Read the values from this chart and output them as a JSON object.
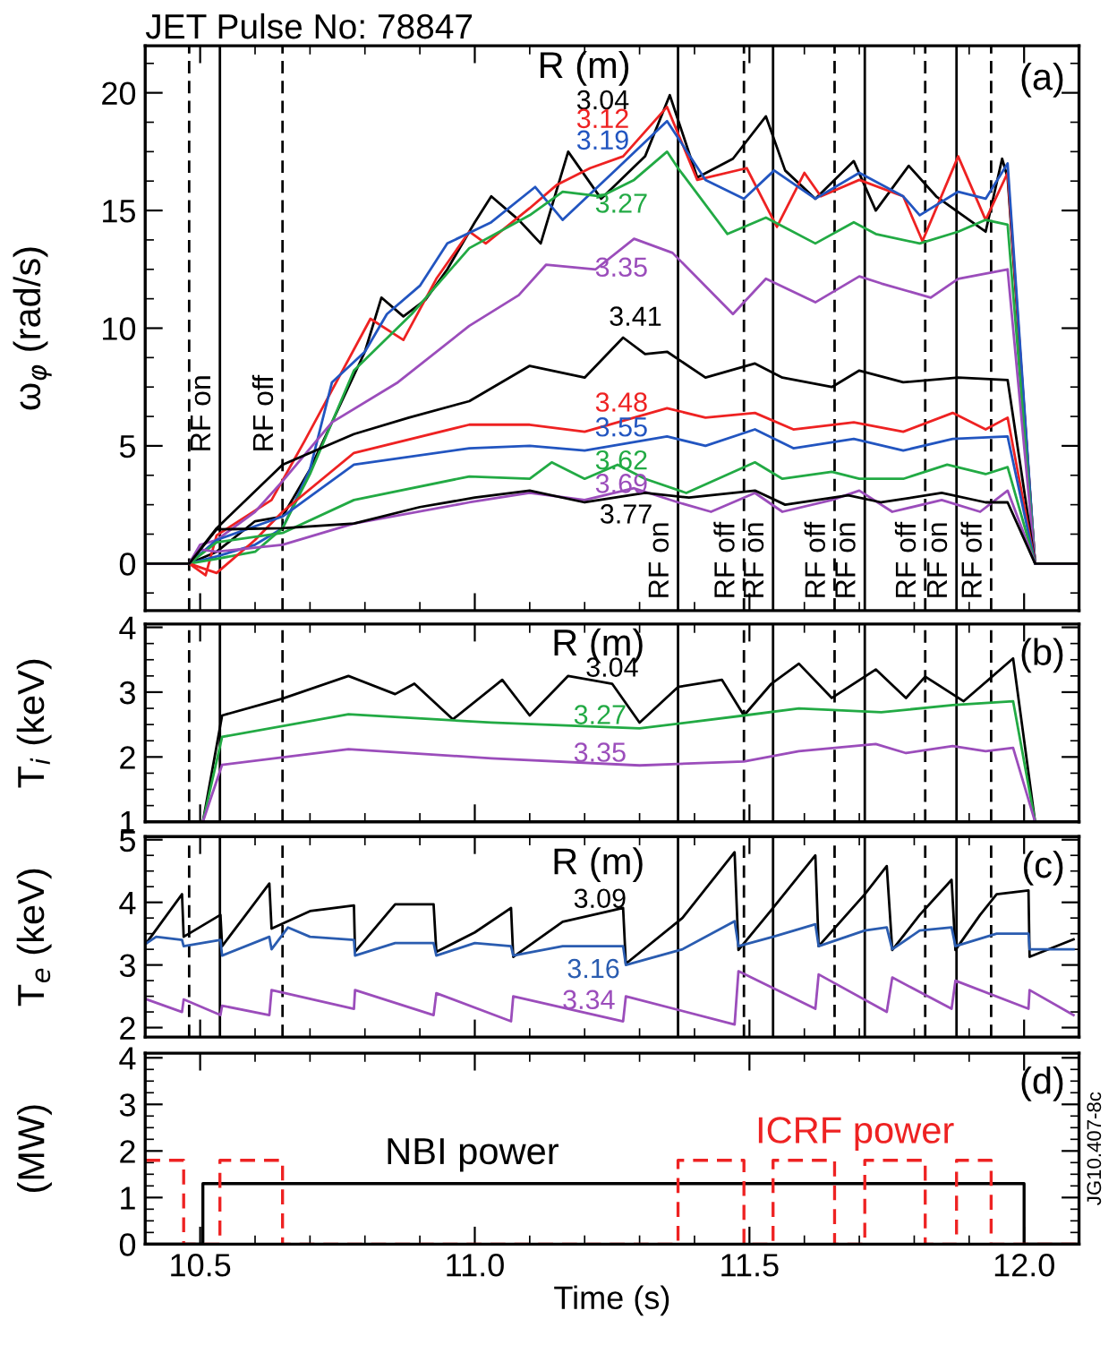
{
  "chart_data": [
    {
      "type": "line",
      "title": "JET Pulse No: 78847",
      "ylabel": "ω$_{φ}$ (rad/s)",
      "legend_title": "R (m)",
      "annotations": [
        "(a)"
      ],
      "tick_labels": "y",
      "xlim": [
        10.4,
        12.1
      ],
      "xticks": [
        {
          "value": 10.5,
          "label": null
        },
        {
          "value": 11.0,
          "label": null
        },
        {
          "value": 11.5,
          "label": null
        },
        {
          "value": 12.0,
          "label": null
        }
      ],
      "ylim": [
        -2,
        22
      ],
      "yticks": [
        0,
        5,
        10,
        15,
        20
      ],
      "ref_lines": [
        {
          "axis": "x",
          "value": 10.48,
          "line_style": "dashed",
          "color": "#000000"
        },
        {
          "axis": "x",
          "value": 10.536,
          "label": "RF on",
          "line_style": "solid",
          "color": "#000000"
        },
        {
          "axis": "x",
          "value": 10.65,
          "label": "RF off",
          "line_style": "dashed",
          "color": "#000000"
        },
        {
          "axis": "x",
          "value": 11.37,
          "label": "RF on",
          "line_style": "solid",
          "color": "#000000"
        },
        {
          "axis": "x",
          "value": 11.49,
          "label": "RF off",
          "line_style": "dashed",
          "color": "#000000"
        },
        {
          "axis": "x",
          "value": 11.543,
          "label": "RF on",
          "line_style": "solid",
          "color": "#000000"
        },
        {
          "axis": "x",
          "value": 11.655,
          "label": "RF off",
          "line_style": "dashed",
          "color": "#000000"
        },
        {
          "axis": "x",
          "value": 11.71,
          "label": "RF on",
          "line_style": "solid",
          "color": "#000000"
        },
        {
          "axis": "x",
          "value": 11.82,
          "label": "RF off",
          "line_style": "dashed",
          "color": "#000000"
        },
        {
          "axis": "x",
          "value": 11.877,
          "label": "RF on",
          "line_style": "solid",
          "color": "#000000"
        },
        {
          "axis": "x",
          "value": 11.94,
          "label": "RF off",
          "line_style": "dashed",
          "color": "#000000"
        }
      ],
      "series": [
        {
          "name": "3.04",
          "color": "#000000",
          "x": [
            10.4,
            10.48,
            10.53,
            10.6,
            10.65,
            10.7,
            10.75,
            10.8,
            10.83,
            10.87,
            10.91,
            10.95,
            11.0,
            11.03,
            11.08,
            11.12,
            11.17,
            11.23,
            11.31,
            11.355,
            11.405,
            11.47,
            11.53,
            11.565,
            11.62,
            11.69,
            11.73,
            11.79,
            11.84,
            11.93,
            11.96,
            11.97,
            12.02,
            12.1
          ],
          "values": [
            0,
            0,
            0.5,
            1.8,
            2.0,
            4.0,
            6.5,
            9.0,
            11.3,
            10.5,
            11.2,
            12.5,
            14.5,
            15.6,
            14.6,
            13.6,
            17.5,
            15.5,
            17.3,
            19.9,
            16.4,
            17.2,
            19.0,
            16.7,
            15.5,
            17.1,
            15.0,
            16.9,
            15.6,
            14.1,
            17.2,
            16.4,
            0,
            0
          ]
        },
        {
          "name": "3.12",
          "color": "#ee2222",
          "x": [
            10.4,
            10.48,
            10.51,
            10.53,
            10.63,
            10.69,
            10.75,
            10.81,
            10.87,
            10.93,
            10.99,
            11.02,
            11.1,
            11.15,
            11.21,
            11.27,
            11.35,
            11.405,
            11.495,
            11.55,
            11.6,
            11.63,
            11.7,
            11.78,
            11.815,
            11.88,
            11.93,
            11.97,
            12.02,
            12.1
          ],
          "values": [
            0,
            0,
            -0.5,
            1.2,
            2.7,
            5.2,
            7.8,
            10.4,
            9.5,
            12.1,
            14.1,
            13.6,
            15.1,
            16.1,
            16.8,
            17.3,
            19.4,
            16.3,
            16.8,
            14.3,
            16.6,
            15.6,
            16.3,
            15.6,
            13.7,
            17.3,
            14.6,
            16.6,
            0,
            0
          ]
        },
        {
          "name": "3.19",
          "color": "#2255c0",
          "x": [
            10.4,
            10.48,
            10.53,
            10.6,
            10.65,
            10.7,
            10.74,
            10.8,
            10.84,
            10.9,
            10.95,
            11.03,
            11.11,
            11.16,
            11.26,
            11.35,
            11.42,
            11.49,
            11.545,
            11.62,
            11.7,
            11.78,
            11.81,
            11.88,
            11.93,
            11.97,
            12.02,
            12.1
          ],
          "values": [
            0,
            0,
            0.3,
            0.8,
            1.5,
            4.0,
            7.7,
            9.0,
            10.6,
            11.8,
            13.6,
            14.5,
            16.0,
            14.6,
            16.8,
            18.8,
            16.3,
            15.5,
            16.7,
            15.5,
            16.6,
            15.6,
            14.8,
            15.8,
            15.5,
            17.0,
            0,
            0
          ]
        },
        {
          "name": "3.27",
          "color": "#22aa44",
          "x": [
            10.4,
            10.48,
            10.53,
            10.6,
            10.65,
            10.7,
            10.78,
            10.885,
            10.99,
            11.1,
            11.16,
            11.23,
            11.29,
            11.35,
            11.37,
            11.46,
            11.53,
            11.62,
            11.69,
            11.73,
            11.81,
            11.88,
            11.93,
            11.97,
            12.02,
            12.1
          ],
          "values": [
            0,
            0,
            0.2,
            0.5,
            1.5,
            3.8,
            8.2,
            10.6,
            13.4,
            14.8,
            15.8,
            15.6,
            16.3,
            17.5,
            16.8,
            14.0,
            14.7,
            13.6,
            14.5,
            14.0,
            13.6,
            14.1,
            14.6,
            14.4,
            0,
            0
          ]
        },
        {
          "name": "3.35",
          "color": "#9b4dbb",
          "x": [
            10.4,
            10.48,
            10.5,
            10.53,
            10.6,
            10.65,
            10.74,
            10.86,
            10.99,
            11.08,
            11.13,
            11.22,
            11.29,
            11.36,
            11.47,
            11.53,
            11.62,
            11.7,
            11.74,
            11.83,
            11.88,
            11.97,
            12.02,
            12.1
          ],
          "values": [
            0,
            0,
            0.8,
            1.0,
            2.2,
            3.5,
            6.0,
            7.7,
            10.1,
            11.4,
            12.7,
            12.5,
            13.8,
            13.2,
            10.6,
            12.1,
            11.1,
            12.2,
            11.9,
            11.3,
            12.1,
            12.5,
            0,
            0
          ]
        },
        {
          "name": "3.41",
          "color": "#000000",
          "x": [
            10.4,
            10.48,
            10.53,
            10.65,
            10.78,
            10.88,
            10.99,
            11.1,
            11.2,
            11.27,
            11.31,
            11.35,
            11.42,
            11.51,
            11.56,
            11.65,
            11.7,
            11.78,
            11.88,
            11.97,
            12.02,
            12.1
          ],
          "values": [
            0,
            0,
            1.5,
            4.2,
            5.5,
            6.2,
            6.9,
            8.4,
            7.9,
            9.6,
            8.9,
            9.0,
            7.9,
            8.5,
            7.9,
            7.5,
            8.2,
            7.7,
            7.9,
            7.8,
            0,
            0
          ]
        },
        {
          "name": "3.48",
          "color": "#ee2222",
          "x": [
            10.4,
            10.48,
            10.53,
            10.6,
            10.65,
            10.78,
            10.99,
            11.1,
            11.2,
            11.35,
            11.42,
            11.51,
            11.58,
            11.69,
            11.78,
            11.87,
            11.93,
            11.97,
            12.02,
            12.1
          ],
          "values": [
            0,
            0,
            -0.4,
            1.0,
            2.2,
            4.7,
            5.9,
            5.9,
            5.6,
            6.6,
            6.2,
            6.4,
            5.7,
            6.0,
            5.6,
            6.4,
            5.7,
            6.2,
            0,
            0
          ]
        },
        {
          "name": "3.55",
          "color": "#2255c0",
          "x": [
            10.4,
            10.48,
            10.53,
            10.65,
            10.78,
            10.99,
            11.1,
            11.2,
            11.35,
            11.42,
            11.51,
            11.58,
            11.69,
            11.78,
            11.87,
            11.97,
            12.02,
            12.1
          ],
          "values": [
            0,
            0,
            1.0,
            2.0,
            4.2,
            4.9,
            5.0,
            4.8,
            5.4,
            5.0,
            5.7,
            4.9,
            5.3,
            4.8,
            5.3,
            5.4,
            0,
            0
          ]
        },
        {
          "name": "3.62",
          "color": "#22aa44",
          "x": [
            10.4,
            10.48,
            10.53,
            10.65,
            10.78,
            10.99,
            11.1,
            11.14,
            11.2,
            11.26,
            11.31,
            11.385,
            11.51,
            11.56,
            11.65,
            11.7,
            11.78,
            11.86,
            11.93,
            11.97,
            12.02,
            12.1
          ],
          "values": [
            0,
            0,
            0.9,
            1.3,
            2.7,
            3.7,
            3.6,
            4.3,
            3.6,
            4.2,
            3.6,
            3.0,
            4.3,
            3.6,
            3.9,
            3.6,
            3.6,
            4.2,
            3.8,
            4.1,
            0,
            0
          ]
        },
        {
          "name": "3.69",
          "color": "#9b4dbb",
          "x": [
            10.4,
            10.48,
            10.5,
            10.53,
            10.65,
            10.78,
            10.99,
            11.1,
            11.2,
            11.29,
            11.37,
            11.43,
            11.51,
            11.56,
            11.65,
            11.7,
            11.76,
            11.85,
            11.92,
            11.97,
            12.02,
            12.1
          ],
          "values": [
            0,
            0,
            0.6,
            0.5,
            0.8,
            1.7,
            2.6,
            3.0,
            2.7,
            3.2,
            2.6,
            2.2,
            3.0,
            2.2,
            2.7,
            3.1,
            2.2,
            2.7,
            2.2,
            3.1,
            0,
            0
          ]
        },
        {
          "name": "3.77",
          "color": "#000000",
          "x": [
            10.4,
            10.48,
            10.53,
            10.65,
            10.78,
            10.9,
            11.0,
            11.1,
            11.2,
            11.31,
            11.39,
            11.51,
            11.565,
            11.68,
            11.74,
            11.85,
            11.93,
            11.97,
            12.02,
            12.1
          ],
          "values": [
            0,
            0,
            1.45,
            1.5,
            1.7,
            2.4,
            2.8,
            3.1,
            2.6,
            3.0,
            2.8,
            3.1,
            2.5,
            2.9,
            2.6,
            3.0,
            2.6,
            2.6,
            0,
            0
          ]
        }
      ]
    },
    {
      "type": "line",
      "ylabel": "T$_{i}$ (keV)",
      "legend_title": "R (m)",
      "annotations": [
        "(b)"
      ],
      "tick_labels": "y",
      "xlim": [
        10.4,
        12.1
      ],
      "xticks": [
        {
          "value": 10.5,
          "label": null
        },
        {
          "value": 11.0,
          "label": null
        },
        {
          "value": 11.5,
          "label": null
        },
        {
          "value": 12.0,
          "label": null
        }
      ],
      "ylim": [
        1,
        4.05
      ],
      "yticks": [
        1,
        2,
        3,
        4
      ],
      "ref_lines": [
        {
          "axis": "x",
          "value": 10.48,
          "line_style": "dashed",
          "color": "#000000"
        },
        {
          "axis": "x",
          "value": 10.536,
          "line_style": "solid",
          "color": "#000000"
        },
        {
          "axis": "x",
          "value": 10.65,
          "line_style": "dashed",
          "color": "#000000"
        },
        {
          "axis": "x",
          "value": 11.37,
          "line_style": "solid",
          "color": "#000000"
        },
        {
          "axis": "x",
          "value": 11.49,
          "line_style": "dashed",
          "color": "#000000"
        },
        {
          "axis": "x",
          "value": 11.543,
          "line_style": "solid",
          "color": "#000000"
        },
        {
          "axis": "x",
          "value": 11.655,
          "line_style": "dashed",
          "color": "#000000"
        },
        {
          "axis": "x",
          "value": 11.71,
          "line_style": "solid",
          "color": "#000000"
        },
        {
          "axis": "x",
          "value": 11.82,
          "line_style": "dashed",
          "color": "#000000"
        },
        {
          "axis": "x",
          "value": 11.877,
          "line_style": "solid",
          "color": "#000000"
        },
        {
          "axis": "x",
          "value": 11.94,
          "line_style": "dashed",
          "color": "#000000"
        }
      ],
      "series": [
        {
          "name": "3.04",
          "color": "#000000",
          "x": [
            10.505,
            10.54,
            10.65,
            10.77,
            10.855,
            10.89,
            10.96,
            11.05,
            11.1,
            11.17,
            11.25,
            11.3,
            11.37,
            11.45,
            11.49,
            11.54,
            11.59,
            11.65,
            11.73,
            11.785,
            11.82,
            11.89,
            11.98,
            12.02
          ],
          "values": [
            1.0,
            2.64,
            2.9,
            3.25,
            2.97,
            3.13,
            2.58,
            3.19,
            2.64,
            3.25,
            3.13,
            2.53,
            3.08,
            3.19,
            2.64,
            3.13,
            3.44,
            2.91,
            3.35,
            2.91,
            3.24,
            2.86,
            3.52,
            1.0
          ]
        },
        {
          "name": "3.27",
          "color": "#22aa44",
          "x": [
            10.505,
            10.54,
            10.77,
            11.03,
            11.3,
            11.49,
            11.59,
            11.74,
            11.87,
            11.98,
            12.02
          ],
          "values": [
            1.0,
            2.31,
            2.66,
            2.53,
            2.44,
            2.64,
            2.75,
            2.69,
            2.8,
            2.86,
            1.0
          ]
        },
        {
          "name": "3.35",
          "color": "#9b4dbb",
          "x": [
            10.505,
            10.54,
            10.77,
            11.03,
            11.3,
            11.49,
            11.59,
            11.73,
            11.785,
            11.87,
            11.93,
            11.98,
            12.02
          ],
          "values": [
            1.0,
            1.88,
            2.12,
            1.98,
            1.87,
            1.93,
            2.09,
            2.2,
            2.06,
            2.17,
            2.09,
            2.14,
            1.0
          ]
        }
      ]
    },
    {
      "type": "line",
      "ylabel": "T$_{e}$ (keV)",
      "legend_title": "R (m)",
      "annotations": [
        "(c)"
      ],
      "tick_labels": "y",
      "xlim": [
        10.4,
        12.1
      ],
      "xticks": [
        {
          "value": 10.5,
          "label": null
        },
        {
          "value": 11.0,
          "label": null
        },
        {
          "value": 11.5,
          "label": null
        },
        {
          "value": 12.0,
          "label": null
        }
      ],
      "ylim": [
        1.85,
        5.05
      ],
      "yticks": [
        2,
        3,
        4,
        5
      ],
      "ref_lines": [
        {
          "axis": "x",
          "value": 10.48,
          "line_style": "dashed",
          "color": "#000000"
        },
        {
          "axis": "x",
          "value": 10.536,
          "line_style": "solid",
          "color": "#000000"
        },
        {
          "axis": "x",
          "value": 10.65,
          "line_style": "dashed",
          "color": "#000000"
        },
        {
          "axis": "x",
          "value": 11.37,
          "line_style": "solid",
          "color": "#000000"
        },
        {
          "axis": "x",
          "value": 11.49,
          "line_style": "dashed",
          "color": "#000000"
        },
        {
          "axis": "x",
          "value": 11.543,
          "line_style": "solid",
          "color": "#000000"
        },
        {
          "axis": "x",
          "value": 11.655,
          "line_style": "dashed",
          "color": "#000000"
        },
        {
          "axis": "x",
          "value": 11.71,
          "line_style": "solid",
          "color": "#000000"
        },
        {
          "axis": "x",
          "value": 11.82,
          "line_style": "dashed",
          "color": "#000000"
        },
        {
          "axis": "x",
          "value": 11.877,
          "line_style": "solid",
          "color": "#000000"
        },
        {
          "axis": "x",
          "value": 11.94,
          "line_style": "dashed",
          "color": "#000000"
        }
      ],
      "series": [
        {
          "name": "3.09",
          "color": "#000000",
          "x": [
            10.403,
            10.467,
            10.47,
            10.537,
            10.54,
            10.626,
            10.63,
            10.7,
            10.78,
            10.782,
            10.855,
            10.925,
            10.93,
            11.0,
            11.066,
            11.07,
            11.16,
            11.27,
            11.275,
            11.378,
            11.473,
            11.48,
            11.543,
            11.62,
            11.626,
            11.71,
            11.75,
            11.76,
            11.81,
            11.868,
            11.875,
            11.92,
            11.95,
            12.008,
            12.01,
            12.09
          ],
          "values": [
            3.36,
            4.13,
            3.45,
            3.8,
            3.3,
            4.3,
            3.58,
            3.86,
            3.95,
            3.21,
            3.97,
            3.97,
            3.21,
            3.52,
            3.91,
            3.13,
            3.69,
            3.91,
            3.02,
            3.75,
            4.8,
            3.24,
            3.91,
            4.75,
            3.3,
            4.13,
            4.58,
            3.24,
            3.8,
            4.36,
            3.24,
            3.8,
            4.13,
            4.19,
            3.13,
            3.41
          ]
        },
        {
          "name": "3.16",
          "color": "#2a5cb0",
          "x": [
            10.403,
            10.42,
            10.467,
            10.47,
            10.537,
            10.54,
            10.626,
            10.63,
            10.66,
            10.7,
            10.78,
            10.782,
            10.855,
            10.925,
            10.93,
            11.0,
            11.066,
            11.07,
            11.16,
            11.27,
            11.275,
            11.378,
            11.473,
            11.48,
            11.543,
            11.62,
            11.626,
            11.71,
            11.75,
            11.76,
            11.81,
            11.868,
            11.875,
            11.95,
            12.008,
            12.01,
            12.09
          ],
          "values": [
            3.35,
            3.45,
            3.4,
            3.3,
            3.4,
            3.15,
            3.45,
            3.25,
            3.6,
            3.45,
            3.4,
            3.15,
            3.35,
            3.35,
            3.15,
            3.35,
            3.3,
            3.15,
            3.3,
            3.3,
            3.0,
            3.25,
            3.7,
            3.3,
            3.45,
            3.65,
            3.3,
            3.55,
            3.6,
            3.25,
            3.55,
            3.6,
            3.3,
            3.5,
            3.5,
            3.25,
            3.25
          ]
        },
        {
          "name": "3.34",
          "color": "#9b4dbb",
          "x": [
            10.403,
            10.467,
            10.47,
            10.537,
            10.54,
            10.626,
            10.63,
            10.78,
            10.782,
            10.925,
            10.93,
            11.066,
            11.07,
            11.27,
            11.275,
            11.473,
            11.48,
            11.62,
            11.626,
            11.75,
            11.76,
            11.868,
            11.875,
            12.008,
            12.01,
            12.09
          ],
          "values": [
            2.45,
            2.25,
            2.45,
            2.2,
            2.35,
            2.2,
            2.6,
            2.3,
            2.6,
            2.2,
            2.55,
            2.1,
            2.5,
            2.1,
            2.5,
            2.05,
            2.9,
            2.3,
            2.85,
            2.25,
            2.8,
            2.3,
            2.75,
            2.3,
            2.6,
            2.2
          ]
        }
      ]
    },
    {
      "type": "step",
      "ylabel": "(MW)",
      "xlabel": "Time (s)",
      "annotations": [
        "(d)",
        "JG10.407-8c"
      ],
      "xlim": [
        10.4,
        12.1
      ],
      "xticks": [
        10.5,
        {
          "value": 11.0,
          "label": "11.0"
        },
        11.5,
        {
          "value": 12.0,
          "label": "12.0"
        }
      ],
      "ylim": [
        0,
        4.1
      ],
      "yticks": [
        0,
        1,
        2,
        3,
        4
      ],
      "series": [
        {
          "name": "NBI power",
          "color": "#000000",
          "line_style": "solid",
          "x": [
            10.4,
            10.505,
            12.0,
            12.1
          ],
          "values": [
            0,
            1.3,
            0,
            0
          ]
        },
        {
          "name": "ICRF power",
          "color": "#ee2222",
          "line_style": "dashed",
          "x": [
            10.4,
            10.47,
            10.536,
            10.65,
            11.37,
            11.49,
            11.543,
            11.655,
            11.71,
            11.82,
            11.877,
            11.94,
            12.1
          ],
          "values": [
            1.8,
            0,
            1.8,
            0,
            1.8,
            0,
            1.8,
            0,
            1.8,
            0,
            1.8,
            0,
            0
          ]
        }
      ]
    }
  ]
}
